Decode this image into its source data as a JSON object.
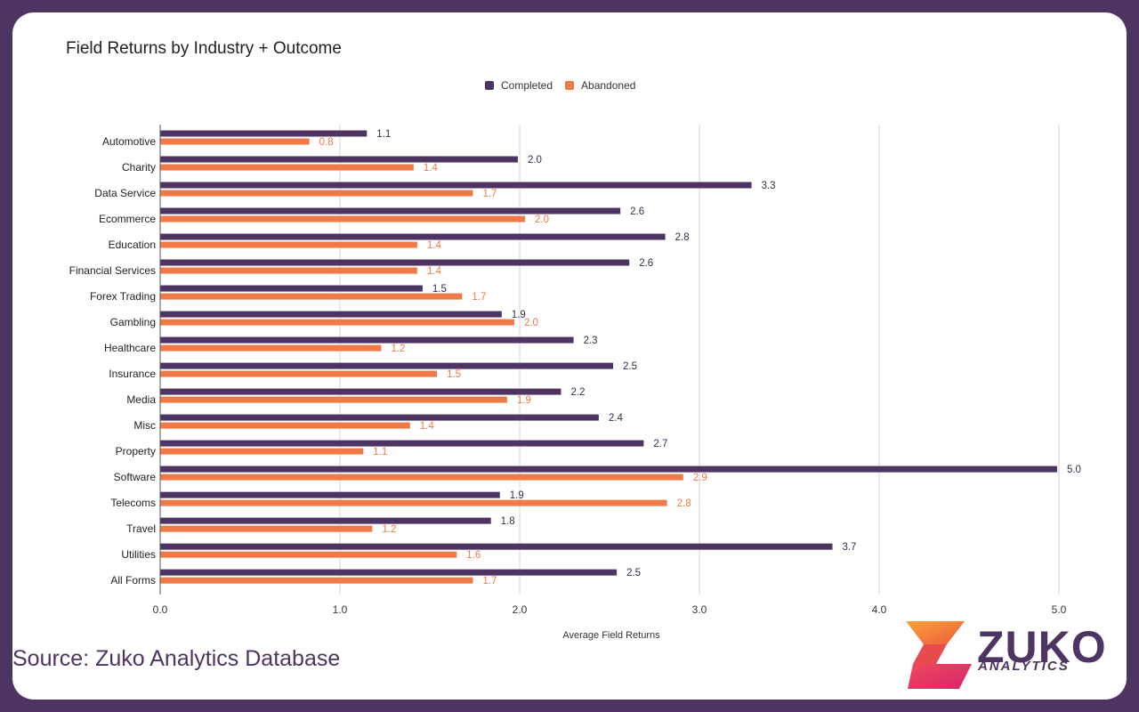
{
  "source_text": "Source: Zuko Analytics Database",
  "logo": {
    "word": "ZUKO",
    "sub": "ANALYTICS"
  },
  "colors": {
    "completed": "#4e3462",
    "abandoned": "#ef7a48",
    "frame": "#4e3462"
  },
  "chart_data": {
    "type": "bar",
    "orientation": "horizontal",
    "title": "Field Returns by Industry + Outcome",
    "xlabel": "Average Field Returns",
    "ylabel": "",
    "xlim": [
      0,
      5.0
    ],
    "xticks": [
      "0.0",
      "1.0",
      "2.0",
      "3.0",
      "4.0",
      "5.0"
    ],
    "grid": true,
    "legend_position": "top-center",
    "categories": [
      "Automotive",
      "Charity",
      "Data Service",
      "Ecommerce",
      "Education",
      "Financial Services",
      "Forex Trading",
      "Gambling",
      "Healthcare",
      "Insurance",
      "Media",
      "Misc",
      "Property",
      "Software",
      "Telecoms",
      "Travel",
      "Utilities",
      "All Forms"
    ],
    "series": [
      {
        "name": "Completed",
        "labels": [
          "1.1",
          "2.0",
          "3.3",
          "2.6",
          "2.8",
          "2.6",
          "1.5",
          "1.9",
          "2.3",
          "2.5",
          "2.2",
          "2.4",
          "2.7",
          "5.0",
          "1.9",
          "1.8",
          "3.7",
          "2.5"
        ],
        "values": [
          1.15,
          1.99,
          3.29,
          2.56,
          2.81,
          2.61,
          1.46,
          1.9,
          2.3,
          2.52,
          2.23,
          2.44,
          2.69,
          4.99,
          1.89,
          1.84,
          3.74,
          2.54
        ]
      },
      {
        "name": "Abandoned",
        "labels": [
          "0.8",
          "1.4",
          "1.7",
          "2.0",
          "1.4",
          "1.4",
          "1.7",
          "2.0",
          "1.2",
          "1.5",
          "1.9",
          "1.4",
          "1.1",
          "2.9",
          "2.8",
          "1.2",
          "1.6",
          "1.7"
        ],
        "values": [
          0.83,
          1.41,
          1.74,
          2.03,
          1.43,
          1.43,
          1.68,
          1.97,
          1.23,
          1.54,
          1.93,
          1.39,
          1.13,
          2.91,
          2.82,
          1.18,
          1.65,
          1.74
        ]
      }
    ]
  }
}
